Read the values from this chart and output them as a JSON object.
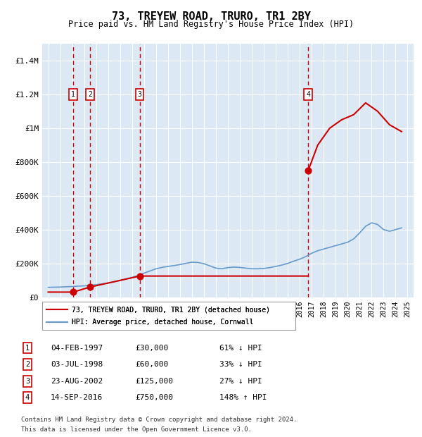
{
  "title": "73, TREYEW ROAD, TRURO, TR1 2BY",
  "subtitle": "Price paid vs. HM Land Registry's House Price Index (HPI)",
  "legend_line1": "73, TREYEW ROAD, TRURO, TR1 2BY (detached house)",
  "legend_line2": "HPI: Average price, detached house, Cornwall",
  "footer1": "Contains HM Land Registry data © Crown copyright and database right 2024.",
  "footer2": "This data is licensed under the Open Government Licence v3.0.",
  "transactions": [
    {
      "num": 1,
      "date": "04-FEB-1997",
      "price": 30000,
      "pct": "61%",
      "dir": "↓",
      "year": 1997.09
    },
    {
      "num": 2,
      "date": "03-JUL-1998",
      "price": 60000,
      "pct": "33%",
      "dir": "↓",
      "year": 1998.5
    },
    {
      "num": 3,
      "date": "23-AUG-2002",
      "price": 125000,
      "pct": "27%",
      "dir": "↓",
      "year": 2002.64
    },
    {
      "num": 4,
      "date": "14-SEP-2016",
      "price": 750000,
      "pct": "148%",
      "dir": "↑",
      "year": 2016.71
    }
  ],
  "hpi_years": [
    1995,
    1995.5,
    1996,
    1996.5,
    1997,
    1997.5,
    1998,
    1998.5,
    1999,
    1999.5,
    2000,
    2000.5,
    2001,
    2001.5,
    2002,
    2002.5,
    2003,
    2003.5,
    2004,
    2004.5,
    2005,
    2005.5,
    2006,
    2006.5,
    2007,
    2007.5,
    2008,
    2008.5,
    2009,
    2009.5,
    2010,
    2010.5,
    2011,
    2011.5,
    2012,
    2012.5,
    2013,
    2013.5,
    2014,
    2014.5,
    2015,
    2015.5,
    2016,
    2016.5,
    2017,
    2017.5,
    2018,
    2018.5,
    2019,
    2019.5,
    2020,
    2020.5,
    2021,
    2021.5,
    2022,
    2022.5,
    2023,
    2023.5,
    2024,
    2024.5
  ],
  "hpi_values": [
    58000,
    59000,
    60000,
    61500,
    63000,
    65000,
    67000,
    70000,
    74000,
    79000,
    84000,
    91000,
    99000,
    108000,
    117000,
    128000,
    142000,
    155000,
    168000,
    176000,
    182000,
    187000,
    193000,
    200000,
    207000,
    205000,
    198000,
    185000,
    172000,
    168000,
    175000,
    178000,
    176000,
    172000,
    168000,
    168000,
    170000,
    175000,
    182000,
    190000,
    200000,
    213000,
    225000,
    240000,
    260000,
    275000,
    285000,
    295000,
    305000,
    315000,
    325000,
    345000,
    380000,
    420000,
    440000,
    430000,
    400000,
    390000,
    400000,
    410000
  ],
  "red_line_years": [
    1995,
    1997.09,
    1998.5,
    2002.64,
    2016.71,
    2016.71,
    2017,
    2018,
    2019,
    2020,
    2021,
    2022,
    2023,
    2024.5
  ],
  "red_line_values": [
    30000,
    30000,
    60000,
    125000,
    125000,
    750000,
    850000,
    950000,
    980000,
    1020000,
    1100000,
    1150000,
    1050000,
    1000000
  ],
  "ylim": [
    0,
    1500000
  ],
  "xlim": [
    1994.5,
    2025.5
  ],
  "yticks": [
    0,
    200000,
    400000,
    600000,
    800000,
    1000000,
    1200000,
    1400000
  ],
  "ytick_labels": [
    "£0",
    "£200K",
    "£400K",
    "£600K",
    "£800K",
    "£1M",
    "£1.2M",
    "£1.4M"
  ],
  "xtick_years": [
    1995,
    1996,
    1997,
    1998,
    1999,
    2000,
    2001,
    2002,
    2003,
    2004,
    2005,
    2006,
    2007,
    2008,
    2009,
    2010,
    2011,
    2012,
    2013,
    2014,
    2015,
    2016,
    2017,
    2018,
    2019,
    2020,
    2021,
    2022,
    2023,
    2024,
    2025
  ],
  "background_color": "#dce9f5",
  "plot_bg_color": "#dce9f5",
  "red_color": "#cc0000",
  "blue_color": "#6699cc",
  "marker_color": "#cc0000",
  "vline_color": "#cc0000",
  "box_edge_color": "#cc0000",
  "grid_color": "#ffffff"
}
